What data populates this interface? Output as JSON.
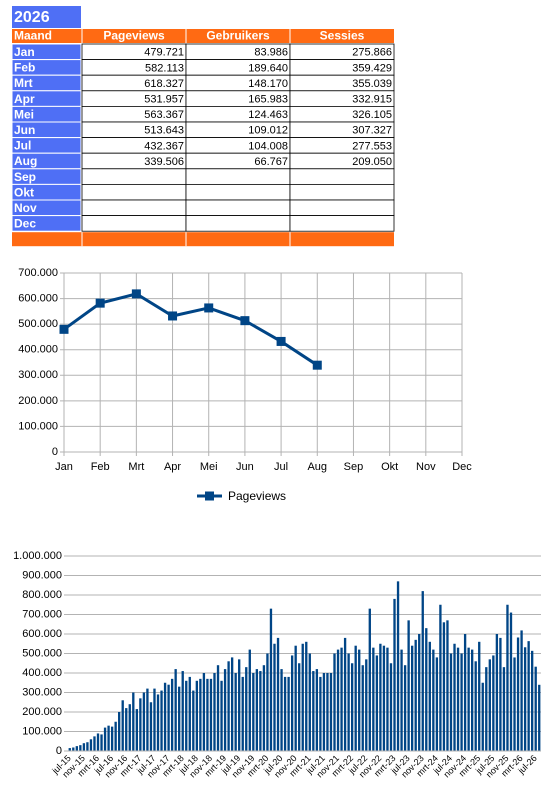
{
  "table": {
    "title": "2026",
    "headers": [
      "Maand",
      "Pageviews",
      "Gebruikers",
      "Sessies"
    ],
    "rows": [
      [
        "Jan",
        "479.721",
        "83.986",
        "275.866"
      ],
      [
        "Feb",
        "582.113",
        "189.640",
        "359.429"
      ],
      [
        "Mrt",
        "618.327",
        "148.170",
        "355.039"
      ],
      [
        "Apr",
        "531.957",
        "165.983",
        "332.915"
      ],
      [
        "Mei",
        "563.367",
        "124.463",
        "326.105"
      ],
      [
        "Jun",
        "513.643",
        "109.012",
        "307.327"
      ],
      [
        "Jul",
        "432.367",
        "104.008",
        "277.553"
      ],
      [
        "Aug",
        "339.506",
        "66.767",
        "209.050"
      ],
      [
        "Sep"
      ],
      [
        "Okt"
      ],
      [
        "Nov"
      ],
      [
        "Dec"
      ]
    ]
  },
  "chart_data": [
    {
      "type": "line",
      "categories": [
        "Jan",
        "Feb",
        "Mrt",
        "Apr",
        "Mei",
        "Jun",
        "Jul",
        "Aug",
        "Sep",
        "Okt",
        "Nov",
        "Dec"
      ],
      "series": [
        {
          "name": "Pageviews",
          "color": "#004586",
          "values": [
            479721,
            582113,
            618327,
            531957,
            563367,
            513643,
            432367,
            339506,
            null,
            null,
            null,
            null
          ]
        }
      ],
      "ylim": [
        0,
        700000
      ],
      "yticks": [
        0,
        {
          "value": 100000,
          "label": "100.000"
        },
        {
          "value": 200000,
          "label": "200.000"
        },
        {
          "value": 300000,
          "label": "300.000"
        },
        {
          "value": 400000,
          "label": "400.000"
        },
        {
          "value": 500000,
          "label": "500.000"
        },
        {
          "value": 600000,
          "label": "600.000"
        },
        {
          "value": 700000,
          "label": "700.000"
        }
      ],
      "grid": true,
      "legend": "bottom"
    },
    {
      "type": "bar",
      "color": "#004586",
      "categories": [
        "jul-15",
        null,
        null,
        null,
        "nov-15",
        null,
        null,
        null,
        "mrt-16",
        null,
        null,
        null,
        "jul-16",
        null,
        null,
        null,
        "nov-16",
        null,
        null,
        null,
        "mrt-17",
        null,
        null,
        null,
        "jul-17",
        null,
        null,
        null,
        "nov-17",
        null,
        null,
        null,
        "mrt-18",
        null,
        null,
        null,
        "jul-18",
        null,
        null,
        null,
        "nov-18",
        null,
        null,
        null,
        "mrt-19",
        null,
        null,
        null,
        "jul-19",
        null,
        null,
        null,
        "nov-19",
        null,
        null,
        null,
        "mrt-20",
        null,
        null,
        null,
        "jul-20",
        null,
        null,
        null,
        "nov-20",
        null,
        null,
        null,
        "mrt-21",
        null,
        null,
        null,
        "jul-21",
        null,
        null,
        null,
        "nov-21",
        null,
        null,
        null,
        "mrt-22",
        null,
        null,
        null,
        "jul-22",
        null,
        null,
        null,
        "nov-22",
        null,
        null,
        null,
        "mrt-23",
        null,
        null,
        null,
        "jul-23",
        null,
        null,
        null,
        "nov-23",
        null,
        null,
        null,
        "mrt-24",
        null,
        null,
        null,
        "jul-24",
        null,
        null,
        null,
        "nov-24",
        null,
        null,
        null,
        "mrt-25",
        null,
        null,
        null,
        "jul-25",
        null,
        null,
        null,
        "nov-25",
        null,
        null,
        null,
        "mrt-26",
        null,
        null,
        null,
        "jul-26",
        null
      ],
      "values": [
        15000,
        18000,
        25000,
        30000,
        40000,
        45000,
        60000,
        75000,
        90000,
        85000,
        120000,
        130000,
        125000,
        150000,
        200000,
        260000,
        220000,
        240000,
        300000,
        215000,
        270000,
        300000,
        320000,
        250000,
        320000,
        290000,
        310000,
        350000,
        340000,
        370000,
        420000,
        330000,
        410000,
        360000,
        380000,
        310000,
        360000,
        370000,
        400000,
        370000,
        370000,
        400000,
        440000,
        360000,
        420000,
        460000,
        480000,
        400000,
        470000,
        380000,
        430000,
        520000,
        400000,
        420000,
        410000,
        440000,
        500000,
        730000,
        550000,
        580000,
        420000,
        380000,
        380000,
        490000,
        540000,
        450000,
        550000,
        560000,
        500000,
        410000,
        420000,
        380000,
        400000,
        400000,
        400000,
        500000,
        520000,
        530000,
        580000,
        500000,
        450000,
        540000,
        520000,
        440000,
        470000,
        730000,
        530000,
        490000,
        550000,
        540000,
        530000,
        450000,
        780000,
        870000,
        520000,
        440000,
        670000,
        540000,
        570000,
        600000,
        820000,
        630000,
        560000,
        520000,
        480000,
        750000,
        660000,
        670000,
        500000,
        550000,
        530000,
        500000,
        600000,
        530000,
        520000,
        460000,
        560000,
        350000,
        430000,
        470000,
        490000,
        600000,
        580000,
        430000,
        750000,
        710000,
        479721,
        582113,
        618327,
        531957,
        563367,
        513643,
        432367,
        339506
      ],
      "ylim": [
        0,
        1000000
      ],
      "yticks": [
        0,
        {
          "value": 100000,
          "label": "100.000"
        },
        {
          "value": 200000,
          "label": "200.000"
        },
        {
          "value": 300000,
          "label": "300.000"
        },
        {
          "value": 400000,
          "label": "400.000"
        },
        {
          "value": 500000,
          "label": "500.000"
        },
        {
          "value": 600000,
          "label": "600.000"
        },
        {
          "value": 700000,
          "label": "700.000"
        },
        {
          "value": 800000,
          "label": "800.000"
        },
        {
          "value": 900000,
          "label": "900.000"
        },
        {
          "value": 1000000,
          "label": "1.000.000"
        }
      ],
      "grid": true
    }
  ]
}
